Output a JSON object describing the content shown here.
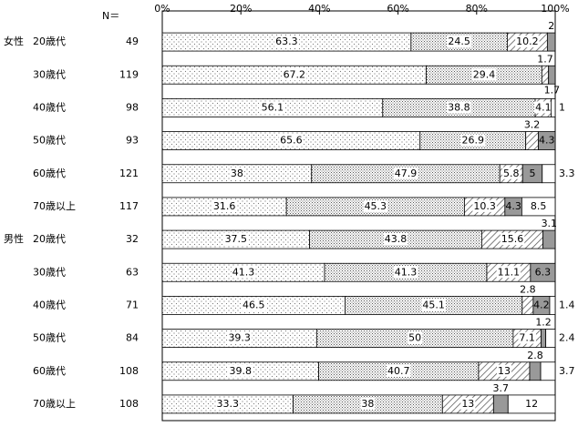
{
  "chart_data": {
    "type": "stacked-bar-horizontal",
    "n_header": "N＝",
    "groups": [
      "女性",
      null,
      null,
      null,
      null,
      null,
      "男性",
      null,
      null,
      null,
      null,
      null
    ],
    "categories": [
      "20歳代",
      "30歳代",
      "40歳代",
      "50歳代",
      "60歳代",
      "70歳以上",
      "20歳代",
      "30歳代",
      "40歳代",
      "50歳代",
      "60歳代",
      "70歳以上"
    ],
    "n": [
      49,
      119,
      98,
      93,
      121,
      117,
      32,
      63,
      71,
      84,
      108,
      108
    ],
    "xlim": [
      0,
      100
    ],
    "xticks": [
      {
        "value": 0,
        "label": "0%"
      },
      {
        "value": 20,
        "label": "20%"
      },
      {
        "value": 40,
        "label": "40%"
      },
      {
        "value": 60,
        "label": "60%"
      },
      {
        "value": 80,
        "label": "80%"
      },
      {
        "value": 100,
        "label": "100%"
      }
    ],
    "series": [
      {
        "color": "#ffffff",
        "pattern": "sparse-dots",
        "values": [
          63.3,
          67.2,
          56.1,
          65.6,
          38.0,
          31.6,
          37.5,
          41.3,
          46.5,
          39.3,
          39.8,
          33.3
        ]
      },
      {
        "color": "#ffffff",
        "pattern": "dense-dots",
        "values": [
          24.5,
          29.4,
          38.8,
          26.9,
          47.9,
          45.3,
          43.8,
          41.3,
          45.1,
          50.0,
          40.7,
          38.0
        ]
      },
      {
        "color": "#ffffff",
        "pattern": "hatch",
        "values": [
          10.2,
          1.7,
          4.1,
          3.2,
          5.8,
          10.3,
          15.6,
          11.1,
          2.8,
          7.1,
          13.0,
          13.0
        ]
      },
      {
        "color": "#999999",
        "pattern": "solid",
        "values": [
          2.0,
          1.7,
          null,
          4.3,
          5.0,
          4.3,
          3.1,
          6.3,
          4.2,
          1.2,
          2.8,
          3.7
        ]
      },
      {
        "color": "#ffffff",
        "pattern": "solid",
        "values": [
          null,
          null,
          1.0,
          null,
          3.3,
          8.5,
          null,
          null,
          1.4,
          2.4,
          3.7,
          12.0
        ]
      }
    ]
  }
}
